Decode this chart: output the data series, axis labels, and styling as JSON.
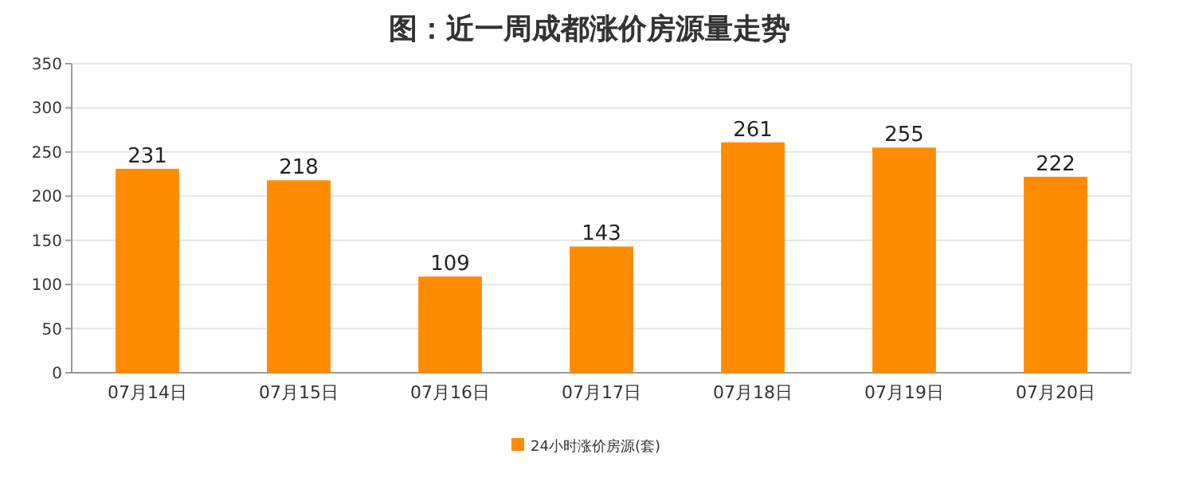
{
  "chart_data": {
    "type": "bar",
    "title": "图：近一周成都涨价房源量走势",
    "categories": [
      "07月14日",
      "07月15日",
      "07月16日",
      "07月17日",
      "07月18日",
      "07月19日",
      "07月20日"
    ],
    "series": [
      {
        "name": "24小时涨价房源(套)",
        "color": "#ff8c00",
        "values": [
          231,
          218,
          109,
          143,
          261,
          255,
          222
        ]
      }
    ],
    "ylim": [
      0,
      350
    ],
    "yticks": [
      0,
      50,
      100,
      150,
      200,
      250,
      300,
      350
    ],
    "grid": "y",
    "legend": "bottom",
    "data_labels": true
  }
}
